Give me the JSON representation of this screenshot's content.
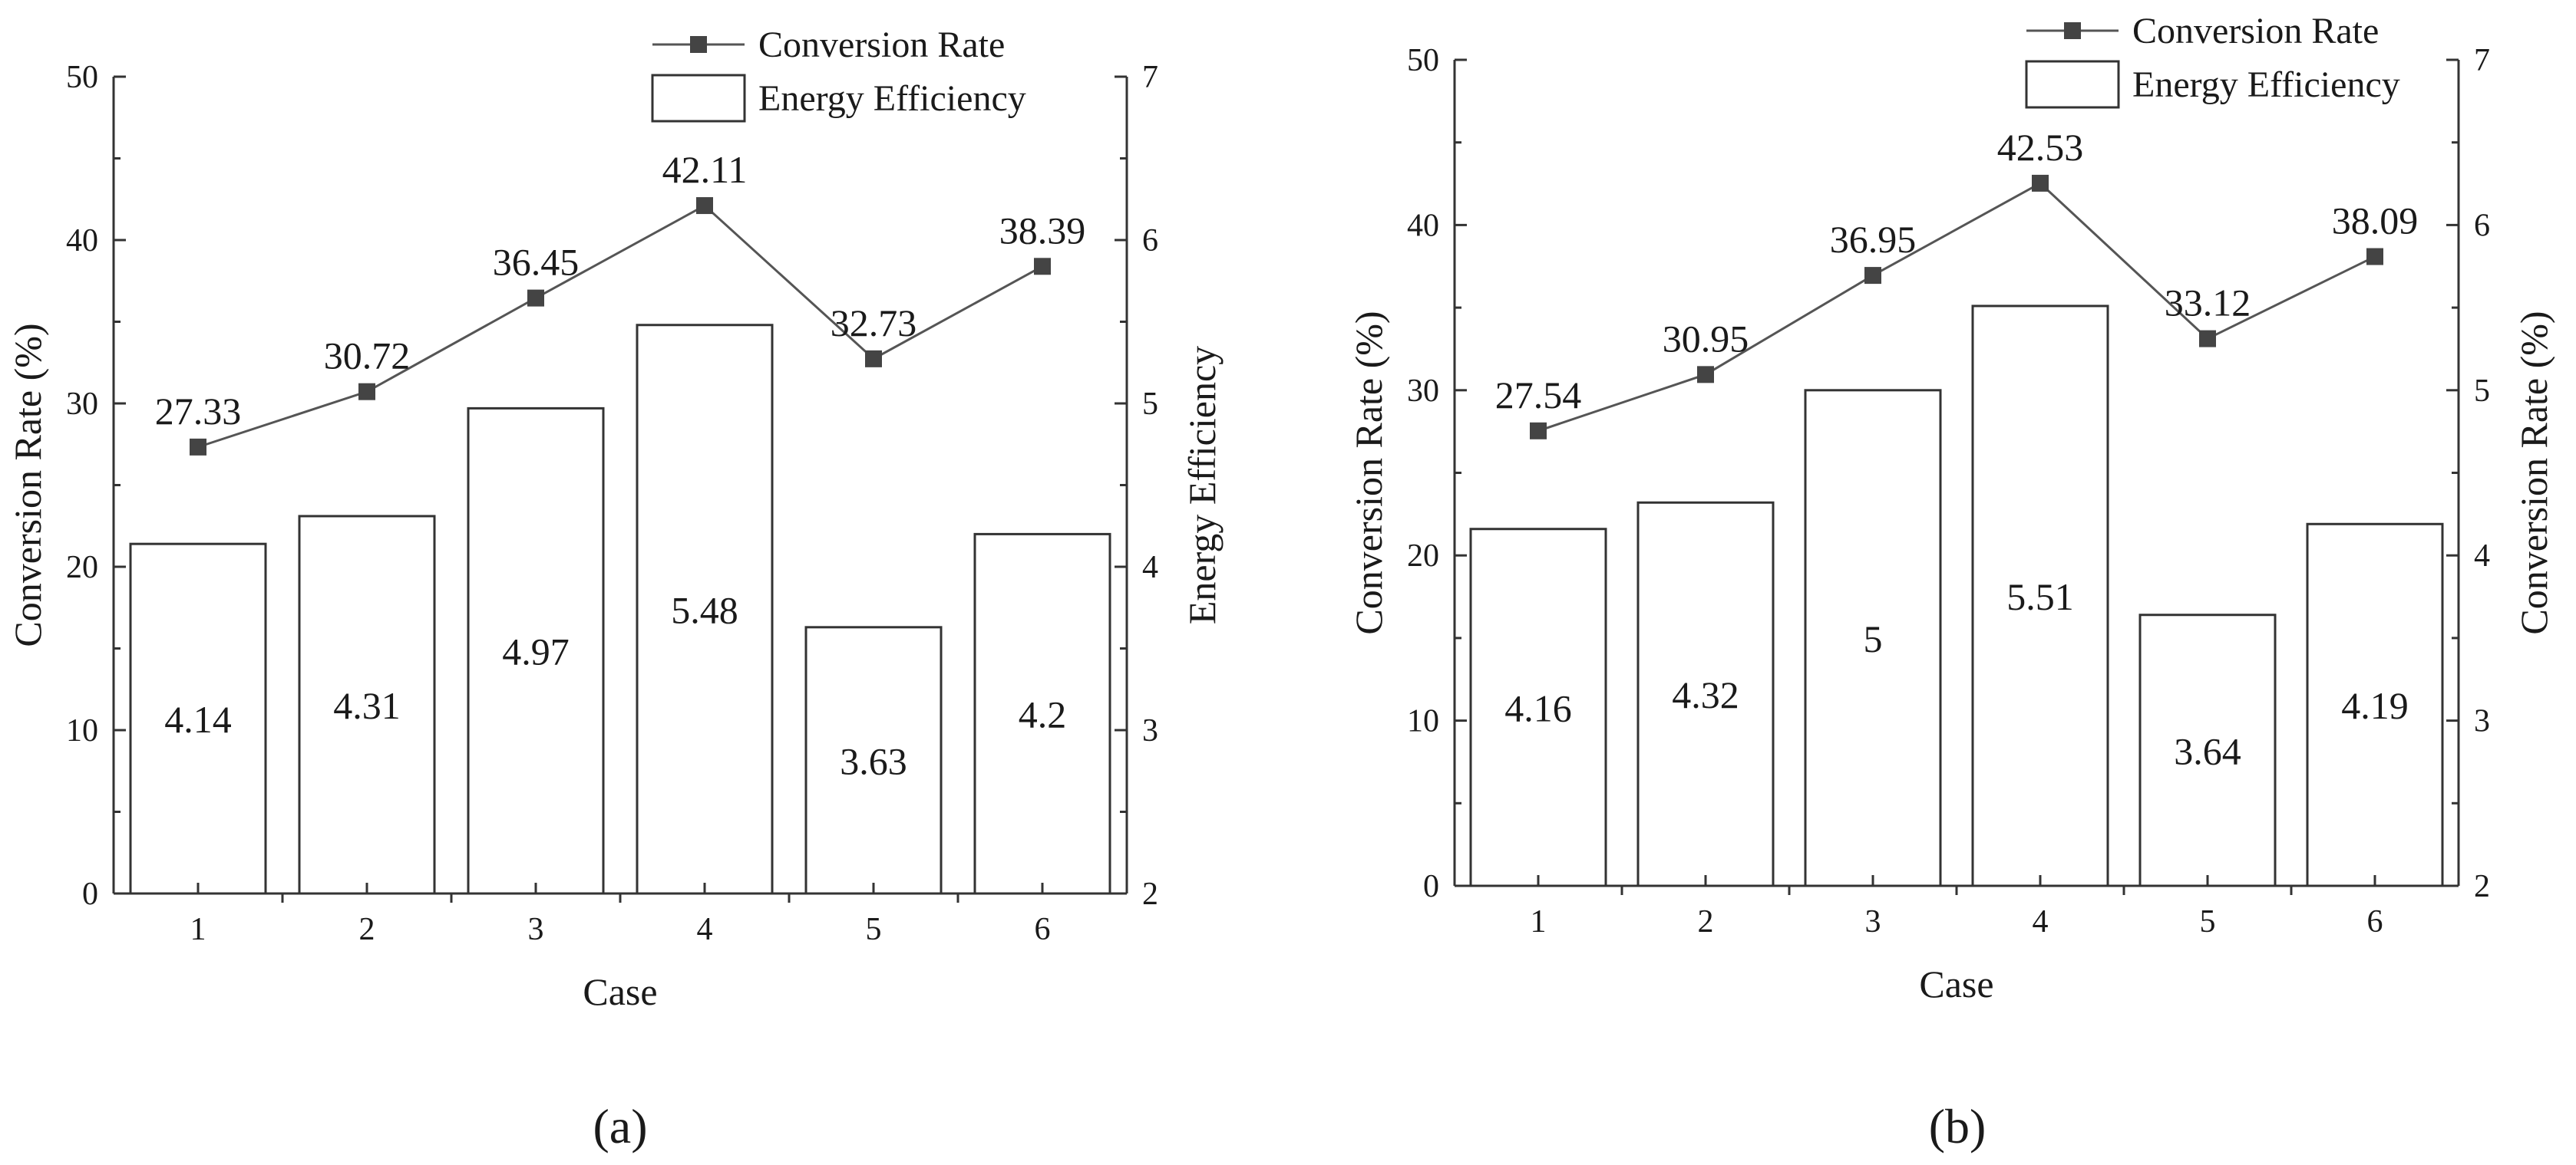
{
  "chart_data": [
    {
      "type": "bar",
      "panel_label": "(a)",
      "categories": [
        "1",
        "2",
        "3",
        "4",
        "5",
        "6"
      ],
      "xlabel": "Case",
      "ylabel": "Conversion Rate (%)",
      "ylim": [
        0,
        50
      ],
      "yticks": [
        0,
        10,
        20,
        30,
        40,
        50
      ],
      "y2label": "Energy Efficiency",
      "y2lim": [
        2,
        7
      ],
      "y2ticks": [
        2,
        3,
        4,
        5,
        6,
        7
      ],
      "series": [
        {
          "name": "Conversion Rate",
          "kind": "line",
          "axis": "left",
          "marker": "square",
          "values": [
            27.33,
            30.72,
            36.45,
            42.11,
            32.73,
            38.39
          ],
          "labels": [
            "27.33",
            "30.72",
            "36.45",
            "42.11",
            "32.73",
            "38.39"
          ]
        },
        {
          "name": "Energy Efficiency",
          "kind": "bar",
          "axis": "right",
          "values": [
            4.14,
            4.31,
            4.97,
            5.48,
            3.63,
            4.2
          ],
          "labels": [
            "4.14",
            "4.31",
            "4.97",
            "5.48",
            "3.63",
            "4.2"
          ]
        }
      ],
      "legend": [
        "Conversion Rate",
        "Energy Efficiency"
      ]
    },
    {
      "type": "bar",
      "panel_label": "(b)",
      "categories": [
        "1",
        "2",
        "3",
        "4",
        "5",
        "6"
      ],
      "xlabel": "Case",
      "ylabel": "Conversion Rate (%)",
      "ylim": [
        0,
        50
      ],
      "yticks": [
        0,
        10,
        20,
        30,
        40,
        50
      ],
      "y2label": "Conversion Rate (%)",
      "y2lim": [
        2,
        7
      ],
      "y2ticks": [
        2,
        3,
        4,
        5,
        6,
        7
      ],
      "series": [
        {
          "name": "Conversion Rate",
          "kind": "line",
          "axis": "left",
          "marker": "square",
          "values": [
            27.54,
            30.95,
            36.95,
            42.53,
            33.12,
            38.09
          ],
          "labels": [
            "27.54",
            "30.95",
            "36.95",
            "42.53",
            "33.12",
            "38.09"
          ]
        },
        {
          "name": "Energy Efficiency",
          "kind": "bar",
          "axis": "right",
          "values": [
            4.16,
            4.32,
            5,
            5.51,
            3.64,
            4.19
          ],
          "labels": [
            "4.16",
            "4.32",
            "5",
            "5.51",
            "3.64",
            "4.19"
          ]
        }
      ],
      "legend": [
        "Conversion Rate",
        "Energy Efficiency"
      ]
    }
  ]
}
